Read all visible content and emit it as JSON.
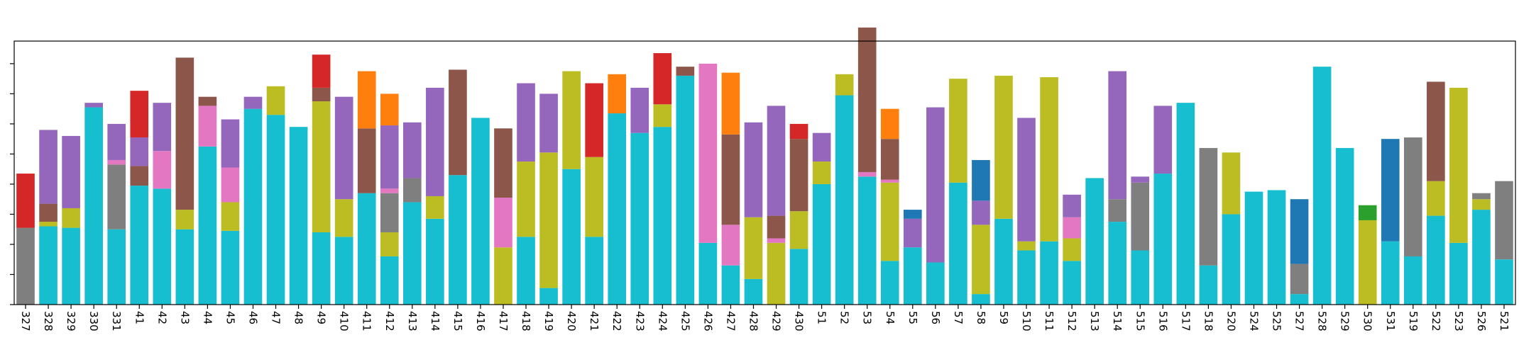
{
  "chart_data": {
    "type": "bar",
    "stacked": true,
    "grid": false,
    "legend": "none",
    "ylim": [
      0,
      175
    ],
    "yticks": [
      0,
      20,
      40,
      60,
      80,
      100,
      120,
      140,
      160
    ],
    "ytick_labels_visible": false,
    "colors": {
      "cyan": "#17becf",
      "olive": "#bcbd22",
      "gray": "#7f7f7f",
      "pink": "#e377c2",
      "brown": "#8c564b",
      "purple": "#9467bd",
      "red": "#d62728",
      "green": "#2ca02c",
      "orange": "#ff7f0e",
      "blue": "#1f77b4"
    },
    "bars": [
      {
        "category": "327",
        "segments": [
          [
            "gray",
            51
          ],
          [
            "red",
            36
          ]
        ]
      },
      {
        "category": "328",
        "segments": [
          [
            "cyan",
            52
          ],
          [
            "olive",
            3
          ],
          [
            "brown",
            12
          ],
          [
            "purple",
            49
          ]
        ]
      },
      {
        "category": "329",
        "segments": [
          [
            "cyan",
            51
          ],
          [
            "olive",
            13
          ],
          [
            "purple",
            48
          ]
        ]
      },
      {
        "category": "330",
        "segments": [
          [
            "cyan",
            131
          ],
          [
            "purple",
            3
          ]
        ]
      },
      {
        "category": "331",
        "segments": [
          [
            "cyan",
            50
          ],
          [
            "gray",
            43
          ],
          [
            "pink",
            3
          ],
          [
            "purple",
            24
          ]
        ]
      },
      {
        "category": "41",
        "segments": [
          [
            "cyan",
            79
          ],
          [
            "brown",
            13
          ],
          [
            "purple",
            19
          ],
          [
            "red",
            31
          ]
        ]
      },
      {
        "category": "42",
        "segments": [
          [
            "cyan",
            77
          ],
          [
            "pink",
            25
          ],
          [
            "purple",
            32
          ]
        ]
      },
      {
        "category": "43",
        "segments": [
          [
            "cyan",
            50
          ],
          [
            "olive",
            13
          ],
          [
            "brown",
            101
          ]
        ]
      },
      {
        "category": "44",
        "segments": [
          [
            "cyan",
            105
          ],
          [
            "pink",
            27
          ],
          [
            "brown",
            6
          ]
        ]
      },
      {
        "category": "45",
        "segments": [
          [
            "cyan",
            49
          ],
          [
            "olive",
            19
          ],
          [
            "pink",
            23
          ],
          [
            "purple",
            32
          ]
        ]
      },
      {
        "category": "46",
        "segments": [
          [
            "cyan",
            130
          ],
          [
            "purple",
            8
          ]
        ]
      },
      {
        "category": "47",
        "segments": [
          [
            "cyan",
            126
          ],
          [
            "olive",
            19
          ]
        ]
      },
      {
        "category": "48",
        "segments": [
          [
            "cyan",
            118
          ]
        ]
      },
      {
        "category": "49",
        "segments": [
          [
            "cyan",
            48
          ],
          [
            "olive",
            87
          ],
          [
            "brown",
            9
          ],
          [
            "red",
            22
          ]
        ]
      },
      {
        "category": "410",
        "segments": [
          [
            "cyan",
            45
          ],
          [
            "olive",
            25
          ],
          [
            "purple",
            68
          ]
        ]
      },
      {
        "category": "411",
        "segments": [
          [
            "cyan",
            74
          ],
          [
            "brown",
            43
          ],
          [
            "orange",
            38
          ]
        ]
      },
      {
        "category": "412",
        "segments": [
          [
            "cyan",
            32
          ],
          [
            "olive",
            16
          ],
          [
            "gray",
            26
          ],
          [
            "pink",
            3
          ],
          [
            "purple",
            42
          ],
          [
            "orange",
            21
          ]
        ]
      },
      {
        "category": "413",
        "segments": [
          [
            "cyan",
            68
          ],
          [
            "gray",
            16
          ],
          [
            "purple",
            37
          ]
        ]
      },
      {
        "category": "414",
        "segments": [
          [
            "cyan",
            57
          ],
          [
            "olive",
            15
          ],
          [
            "purple",
            72
          ]
        ]
      },
      {
        "category": "415",
        "segments": [
          [
            "cyan",
            86
          ],
          [
            "brown",
            70
          ]
        ]
      },
      {
        "category": "416",
        "segments": [
          [
            "cyan",
            124
          ]
        ]
      },
      {
        "category": "417",
        "segments": [
          [
            "olive",
            38
          ],
          [
            "pink",
            33
          ],
          [
            "brown",
            46
          ]
        ]
      },
      {
        "category": "418",
        "segments": [
          [
            "cyan",
            45
          ],
          [
            "olive",
            50
          ],
          [
            "purple",
            52
          ]
        ]
      },
      {
        "category": "419",
        "segments": [
          [
            "cyan",
            11
          ],
          [
            "olive",
            90
          ],
          [
            "purple",
            39
          ]
        ]
      },
      {
        "category": "420",
        "segments": [
          [
            "cyan",
            90
          ],
          [
            "olive",
            65
          ]
        ]
      },
      {
        "category": "421",
        "segments": [
          [
            "cyan",
            45
          ],
          [
            "olive",
            53
          ],
          [
            "red",
            49
          ]
        ]
      },
      {
        "category": "422",
        "segments": [
          [
            "cyan",
            127
          ],
          [
            "orange",
            26
          ]
        ]
      },
      {
        "category": "423",
        "segments": [
          [
            "cyan",
            114
          ],
          [
            "purple",
            30
          ]
        ]
      },
      {
        "category": "424",
        "segments": [
          [
            "cyan",
            118
          ],
          [
            "olive",
            15
          ],
          [
            "red",
            34
          ]
        ]
      },
      {
        "category": "425",
        "segments": [
          [
            "cyan",
            152
          ],
          [
            "brown",
            6
          ]
        ]
      },
      {
        "category": "426",
        "segments": [
          [
            "cyan",
            41
          ],
          [
            "pink",
            119
          ]
        ]
      },
      {
        "category": "427",
        "segments": [
          [
            "cyan",
            26
          ],
          [
            "pink",
            27
          ],
          [
            "brown",
            60
          ],
          [
            "orange",
            41
          ]
        ]
      },
      {
        "category": "428",
        "segments": [
          [
            "cyan",
            17
          ],
          [
            "olive",
            41
          ],
          [
            "purple",
            63
          ]
        ]
      },
      {
        "category": "429",
        "segments": [
          [
            "olive",
            41
          ],
          [
            "pink",
            3
          ],
          [
            "brown",
            15
          ],
          [
            "purple",
            73
          ]
        ]
      },
      {
        "category": "430",
        "segments": [
          [
            "cyan",
            37
          ],
          [
            "olive",
            25
          ],
          [
            "brown",
            48
          ],
          [
            "red",
            10
          ]
        ]
      },
      {
        "category": "51",
        "segments": [
          [
            "cyan",
            80
          ],
          [
            "olive",
            15
          ],
          [
            "purple",
            19
          ]
        ]
      },
      {
        "category": "52",
        "segments": [
          [
            "cyan",
            139
          ],
          [
            "olive",
            14
          ]
        ]
      },
      {
        "category": "53",
        "segments": [
          [
            "cyan",
            85
          ],
          [
            "pink",
            3
          ],
          [
            "brown",
            96
          ]
        ]
      },
      {
        "category": "54",
        "segments": [
          [
            "cyan",
            29
          ],
          [
            "olive",
            52
          ],
          [
            "pink",
            2
          ],
          [
            "brown",
            27
          ],
          [
            "orange",
            20
          ]
        ]
      },
      {
        "category": "55",
        "segments": [
          [
            "cyan",
            38
          ],
          [
            "purple",
            19
          ],
          [
            "blue",
            6
          ]
        ]
      },
      {
        "category": "56",
        "segments": [
          [
            "cyan",
            28
          ],
          [
            "purple",
            103
          ]
        ]
      },
      {
        "category": "57",
        "segments": [
          [
            "cyan",
            81
          ],
          [
            "olive",
            69
          ]
        ]
      },
      {
        "category": "58",
        "segments": [
          [
            "cyan",
            7
          ],
          [
            "olive",
            46
          ],
          [
            "purple",
            16
          ],
          [
            "blue",
            27
          ]
        ]
      },
      {
        "category": "59",
        "segments": [
          [
            "cyan",
            57
          ],
          [
            "olive",
            95
          ]
        ]
      },
      {
        "category": "510",
        "segments": [
          [
            "cyan",
            36
          ],
          [
            "olive",
            6
          ],
          [
            "purple",
            82
          ]
        ]
      },
      {
        "category": "511",
        "segments": [
          [
            "cyan",
            42
          ],
          [
            "olive",
            109
          ]
        ]
      },
      {
        "category": "512",
        "segments": [
          [
            "cyan",
            29
          ],
          [
            "olive",
            15
          ],
          [
            "pink",
            14
          ],
          [
            "purple",
            15
          ]
        ]
      },
      {
        "category": "513",
        "segments": [
          [
            "cyan",
            84
          ]
        ]
      },
      {
        "category": "514",
        "segments": [
          [
            "cyan",
            55
          ],
          [
            "gray",
            15
          ],
          [
            "purple",
            85
          ]
        ]
      },
      {
        "category": "515",
        "segments": [
          [
            "cyan",
            36
          ],
          [
            "gray",
            45
          ],
          [
            "purple",
            4
          ]
        ]
      },
      {
        "category": "516",
        "segments": [
          [
            "cyan",
            87
          ],
          [
            "purple",
            45
          ]
        ]
      },
      {
        "category": "517",
        "segments": [
          [
            "cyan",
            134
          ]
        ]
      },
      {
        "category": "518",
        "segments": [
          [
            "cyan",
            26
          ],
          [
            "gray",
            78
          ]
        ]
      },
      {
        "category": "520",
        "segments": [
          [
            "cyan",
            60
          ],
          [
            "olive",
            41
          ]
        ]
      },
      {
        "category": "524",
        "segments": [
          [
            "cyan",
            75
          ]
        ]
      },
      {
        "category": "525",
        "segments": [
          [
            "cyan",
            76
          ]
        ]
      },
      {
        "category": "527",
        "segments": [
          [
            "cyan",
            7
          ],
          [
            "gray",
            20
          ],
          [
            "blue",
            43
          ]
        ]
      },
      {
        "category": "528",
        "segments": [
          [
            "cyan",
            158
          ]
        ]
      },
      {
        "category": "529",
        "segments": [
          [
            "cyan",
            104
          ]
        ]
      },
      {
        "category": "530",
        "segments": [
          [
            "olive",
            56
          ],
          [
            "green",
            10
          ]
        ]
      },
      {
        "category": "531",
        "segments": [
          [
            "cyan",
            42
          ],
          [
            "blue",
            68
          ]
        ]
      },
      {
        "category": "519",
        "segments": [
          [
            "cyan",
            32
          ],
          [
            "gray",
            79
          ]
        ]
      },
      {
        "category": "522",
        "segments": [
          [
            "cyan",
            59
          ],
          [
            "olive",
            23
          ],
          [
            "brown",
            66
          ]
        ]
      },
      {
        "category": "523",
        "segments": [
          [
            "cyan",
            41
          ],
          [
            "olive",
            103
          ]
        ]
      },
      {
        "category": "526",
        "segments": [
          [
            "cyan",
            63
          ],
          [
            "olive",
            7
          ],
          [
            "gray",
            4
          ]
        ]
      },
      {
        "category": "521",
        "segments": [
          [
            "cyan",
            30
          ],
          [
            "gray",
            52
          ]
        ]
      }
    ]
  }
}
